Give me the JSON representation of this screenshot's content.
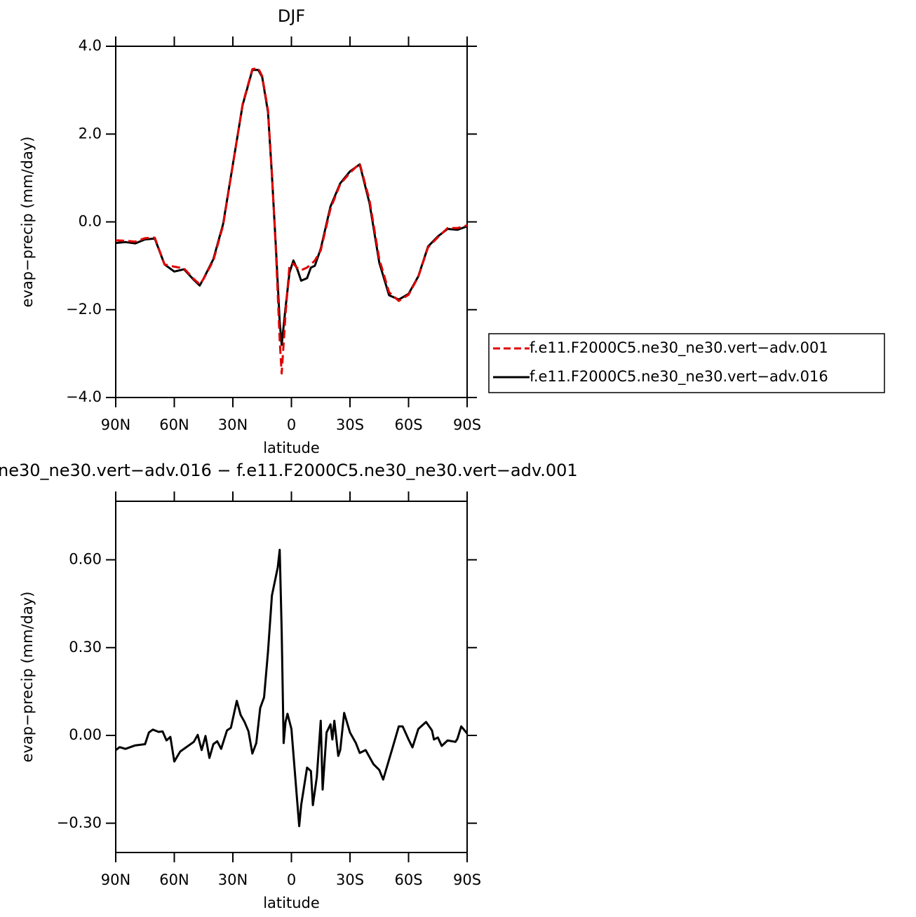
{
  "chart_data": [
    {
      "type": "line",
      "title": "DJF",
      "x_label": "latitude",
      "y_label": "evap−precip (mm/day)",
      "x": [
        90,
        85,
        80,
        75,
        70,
        65,
        60,
        55,
        50,
        47,
        45,
        40,
        35,
        30,
        25,
        20,
        17,
        15,
        12,
        10,
        8,
        6,
        5,
        3,
        1,
        -1,
        -3,
        -5,
        -8,
        -10,
        -12,
        -15,
        -20,
        -25,
        -30,
        -35,
        -40,
        -45,
        -50,
        -55,
        -60,
        -65,
        -70,
        -75,
        -80,
        -85,
        -90
      ],
      "series": [
        {
          "name": "f.e11.F2000C5.ne30_ne30.vert−adv.001",
          "color": "#e00000",
          "dash": true,
          "values": [
            -0.42,
            -0.43,
            -0.45,
            -0.37,
            -0.36,
            -0.97,
            -1.02,
            -1.06,
            -1.3,
            -1.42,
            -1.3,
            -0.88,
            -0.08,
            1.3,
            2.68,
            3.48,
            3.5,
            3.32,
            2.55,
            1.1,
            -0.6,
            -2.7,
            -3.45,
            -2.1,
            -1.0,
            -0.95,
            -1.05,
            -1.1,
            -1.04,
            -0.97,
            -0.88,
            -0.65,
            0.3,
            0.86,
            1.12,
            1.33,
            0.5,
            -0.85,
            -1.6,
            -1.8,
            -1.66,
            -1.25,
            -0.58,
            -0.35,
            -0.14,
            -0.14,
            -0.08
          ]
        },
        {
          "name": "f.e11.F2000C5.ne30_ne30.vert−adv.016",
          "color": "#000000",
          "dash": false,
          "values": [
            -0.48,
            -0.46,
            -0.49,
            -0.4,
            -0.38,
            -0.97,
            -1.13,
            -1.08,
            -1.32,
            -1.45,
            -1.29,
            -0.85,
            -0.05,
            1.31,
            2.66,
            3.46,
            3.46,
            3.3,
            2.5,
            1.07,
            -0.53,
            -2.28,
            -2.8,
            -1.96,
            -1.16,
            -0.88,
            -1.08,
            -1.34,
            -1.28,
            -1.04,
            -1.0,
            -0.61,
            0.35,
            0.88,
            1.15,
            1.31,
            0.43,
            -0.93,
            -1.67,
            -1.77,
            -1.64,
            -1.24,
            -0.56,
            -0.33,
            -0.16,
            -0.18,
            -0.1
          ]
        }
      ],
      "xlim": [
        90,
        -90
      ],
      "xticks": [
        {
          "value": 90,
          "label": "90N"
        },
        {
          "value": 60,
          "label": "60N"
        },
        {
          "value": 30,
          "label": "30N"
        },
        0,
        {
          "value": -30,
          "label": "30S"
        },
        {
          "value": -60,
          "label": "60S"
        },
        {
          "value": -90,
          "label": "90S"
        }
      ],
      "ylim": [
        -4,
        4
      ],
      "yticks": [
        {
          "value": -4,
          "label": "−4.0"
        },
        {
          "value": -2,
          "label": "−2.0"
        },
        {
          "value": 0,
          "label": "0.0"
        },
        {
          "value": 2,
          "label": "2.0"
        },
        {
          "value": 4,
          "label": "4.0"
        }
      ],
      "legend": "outside right"
    },
    {
      "type": "line",
      "title": "ne30_ne30.vert−adv.016 − f.e11.F2000C5.ne30_ne30.vert−adv.001",
      "x_label": "latitude",
      "y_label": "evap−precip (mm/day)",
      "x": [
        90,
        88,
        85,
        80,
        75,
        73,
        71,
        68,
        66,
        64,
        62,
        60,
        57,
        50,
        48,
        46,
        44,
        42,
        40,
        38,
        36,
        33,
        31,
        28,
        26,
        24,
        22,
        20,
        18,
        16,
        14,
        12,
        10,
        7,
        6,
        5,
        4,
        3,
        2,
        0,
        -2,
        -4,
        -5,
        -8,
        -10,
        -11,
        -13,
        -15,
        -16,
        -18,
        -20,
        -21,
        -22,
        -24,
        -25,
        -27,
        -30,
        -33,
        -35,
        -38,
        -42,
        -45,
        -47,
        -52,
        -55,
        -57,
        -60,
        -62,
        -65,
        -69,
        -72,
        -73,
        -75,
        -77,
        -80,
        -84,
        -85,
        -87,
        -90
      ],
      "series": [
        {
          "color": "#000000",
          "dash": false,
          "values": [
            -0.05,
            -0.04,
            -0.046,
            -0.034,
            -0.03,
            0.01,
            0.02,
            0.012,
            0.014,
            -0.017,
            -0.005,
            -0.089,
            -0.055,
            -0.022,
            0.002,
            -0.05,
            -0.002,
            -0.077,
            -0.03,
            -0.02,
            -0.046,
            0.017,
            0.026,
            0.118,
            0.07,
            0.046,
            0.014,
            -0.062,
            -0.026,
            0.094,
            0.13,
            0.286,
            0.478,
            0.574,
            0.634,
            0.358,
            -0.026,
            0.046,
            0.074,
            0.022,
            -0.146,
            -0.31,
            -0.238,
            -0.11,
            -0.122,
            -0.238,
            -0.142,
            0.05,
            -0.185,
            0.01,
            0.038,
            -0.014,
            0.05,
            -0.07,
            -0.05,
            0.077,
            0.01,
            -0.026,
            -0.06,
            -0.05,
            -0.098,
            -0.118,
            -0.151,
            -0.038,
            0.031,
            0.031,
            -0.014,
            -0.041,
            0.022,
            0.046,
            0.017,
            -0.014,
            -0.007,
            -0.036,
            -0.017,
            -0.022,
            -0.012,
            0.031,
            0.007
          ]
        }
      ],
      "xlim": [
        90,
        -90
      ],
      "xticks": [
        {
          "value": 90,
          "label": "90N"
        },
        {
          "value": 60,
          "label": "60N"
        },
        {
          "value": 30,
          "label": "30N"
        },
        0,
        {
          "value": -30,
          "label": "30S"
        },
        {
          "value": -60,
          "label": "60S"
        },
        {
          "value": -90,
          "label": "90S"
        }
      ],
      "ylim": [
        -0.4,
        0.8
      ],
      "yticks": [
        {
          "value": -0.3,
          "label": "−0.30"
        },
        {
          "value": 0,
          "label": "0.00"
        },
        {
          "value": 0.3,
          "label": "0.30"
        },
        {
          "value": 0.6,
          "label": "0.60"
        }
      ]
    }
  ]
}
